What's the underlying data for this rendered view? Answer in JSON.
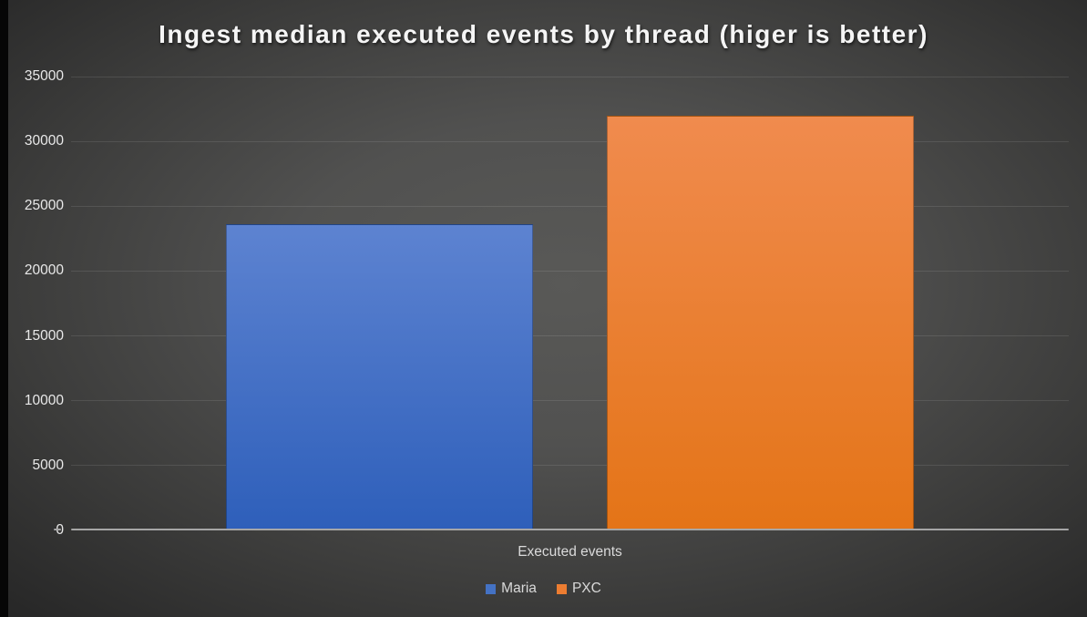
{
  "title": "Ingest median executed events by thread (higer is better)",
  "chart_data": {
    "type": "bar",
    "title": "Ingest median executed events by thread (higer is better)",
    "categories": [
      "Executed events"
    ],
    "series": [
      {
        "name": "Maria",
        "values": [
          23600
        ],
        "color_top": "#5d83d1",
        "color_bottom": "#2e5fba",
        "legend_color": "#4472c4"
      },
      {
        "name": "PXC",
        "values": [
          32000
        ],
        "color_top": "#f08b4e",
        "color_bottom": "#e47417",
        "legend_color": "#ed7d31"
      }
    ],
    "xlabel": "Executed events",
    "ylabel": "",
    "ylim": [
      0,
      35000
    ],
    "ytick_step": 5000,
    "yticks": [
      "0",
      "5000",
      "10000",
      "15000",
      "20000",
      "25000",
      "30000",
      "35000"
    ],
    "grid": true,
    "legend_position": "bottom",
    "background_theme": "dark-radial",
    "axis_color": "#a6a6a6",
    "tick_label_color": "#e9e9e9"
  }
}
